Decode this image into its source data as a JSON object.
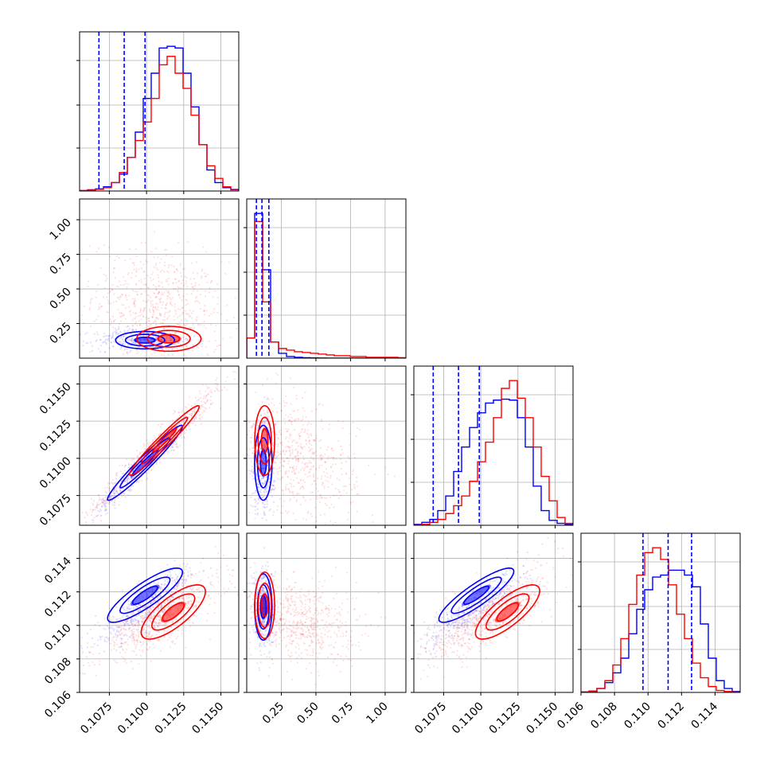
{
  "chart_data": {
    "type": "scatter",
    "title": "",
    "grid": true,
    "legend": "none",
    "series_colors": {
      "blue": "#0000ff",
      "red": "#ff0000"
    },
    "quantile_line_color": "#0000ff",
    "parameters": [
      {
        "range": [
          0.1055,
          0.1162
        ],
        "ticks": [
          0.1075,
          0.11,
          0.1125,
          0.115
        ],
        "tick_labels": [
          "0.1075",
          "0.1100",
          "0.1125",
          "0.1150"
        ]
      },
      {
        "range": [
          0.0,
          1.15
        ],
        "ticks": [
          0.25,
          0.5,
          0.75,
          1.0
        ],
        "tick_labels": [
          "0.25",
          "0.50",
          "0.75",
          "1.00"
        ]
      },
      {
        "range": [
          0.1055,
          0.1162
        ],
        "ticks": [
          0.1075,
          0.11,
          0.1125,
          0.115
        ],
        "tick_labels": [
          "0.1075",
          "0.1100",
          "0.1125",
          "0.1150"
        ]
      },
      {
        "range": [
          0.106,
          0.1155
        ],
        "ticks": [
          0.106,
          0.108,
          0.11,
          0.112,
          0.114
        ],
        "tick_labels": [
          "0.106",
          "0.108",
          "0.110",
          "0.112",
          "0.114"
        ]
      }
    ],
    "quantiles": [
      [
        0.1068,
        0.1085,
        0.1099
      ],
      [
        0.07,
        0.11,
        0.16
      ],
      [
        0.1068,
        0.1085,
        0.1099
      ],
      [
        0.1097,
        0.1112,
        0.1126
      ]
    ],
    "histograms": [
      {
        "blue": {
          "edges": [
            0.1055,
            0.1162
          ],
          "counts": [
            0.5,
            1.5,
            2.5,
            5,
            10,
            20,
            40,
            70,
            110,
            140,
            170,
            172,
            170,
            140,
            100,
            55,
            25,
            10,
            4,
            1.5
          ]
        },
        "red": {
          "edges": [
            0.1055,
            0.1162
          ],
          "counts": [
            0.5,
            1,
            2,
            4,
            10,
            22,
            40,
            60,
            82,
            110,
            150,
            160,
            140,
            122,
            90,
            55,
            30,
            15,
            5,
            2
          ]
        }
      },
      {
        "blue": {
          "edges": [
            0.0,
            1.15
          ],
          "counts": [
            25,
            180,
            110,
            20,
            6,
            2,
            1,
            0.5,
            0.3,
            0.2,
            0.1,
            0.1,
            0.1,
            0.1,
            0,
            0,
            0,
            0,
            0,
            0
          ]
        },
        "red": {
          "edges": [
            0.0,
            1.15
          ],
          "counts": [
            25,
            170,
            70,
            20,
            12,
            10,
            8,
            7,
            6,
            5,
            4,
            3,
            3,
            2,
            2,
            1,
            1,
            1,
            1,
            0.5
          ]
        }
      },
      {
        "blue": {
          "edges": [
            0.1055,
            0.1162
          ],
          "counts": [
            1,
            3,
            6,
            15,
            30,
            55,
            80,
            100,
            115,
            125,
            128,
            129,
            128,
            110,
            80,
            40,
            15,
            5,
            2,
            1
          ]
        },
        "red": {
          "edges": [
            0.1055,
            0.1162
          ],
          "counts": [
            0.5,
            1,
            3,
            6,
            12,
            20,
            30,
            45,
            65,
            85,
            110,
            140,
            148,
            130,
            110,
            80,
            50,
            25,
            8,
            2
          ]
        }
      },
      {
        "blue": {
          "edges": [
            0.106,
            0.1155
          ],
          "counts": [
            0.5,
            1,
            4,
            10,
            20,
            35,
            60,
            85,
            105,
            118,
            120,
            125,
            125,
            120,
            108,
            70,
            35,
            12,
            4,
            1
          ]
        },
        "red": {
          "edges": [
            0.106,
            0.1155
          ],
          "counts": [
            0.5,
            1.5,
            4,
            12,
            28,
            55,
            90,
            120,
            143,
            148,
            136,
            110,
            80,
            55,
            30,
            15,
            6,
            2,
            1,
            0.5
          ]
        }
      }
    ],
    "pairs": [
      {
        "col": 0,
        "row": 1,
        "blue": {
          "mean": [
            0.1099,
            0.13
          ],
          "sd": [
            0.0017,
            0.04
          ],
          "corr": 0.0
        },
        "red": {
          "mean": [
            0.1108,
            0.36
          ],
          "sd": [
            0.0022,
            0.22
          ],
          "corr": -0.2
        },
        "blue_core": {
          "mean": [
            0.1099,
            0.13
          ],
          "sd": [
            0.0011,
            0.035
          ],
          "corr": 0.0
        },
        "red_core": {
          "mean": [
            0.1115,
            0.14
          ],
          "sd": [
            0.0012,
            0.05
          ],
          "corr": 0.0
        }
      },
      {
        "col": 0,
        "row": 2,
        "blue": {
          "mean": [
            0.1099,
            0.1097
          ],
          "sd": [
            0.0017,
            0.0017
          ],
          "corr": 0.97
        },
        "red": {
          "mean": [
            0.1106,
            0.1106
          ],
          "sd": [
            0.0021,
            0.0021
          ],
          "corr": 0.97
        },
        "blue_core": {
          "mean": [
            0.1099,
            0.1097
          ],
          "sd": [
            0.0014,
            0.0014
          ],
          "corr": 0.97
        },
        "red_core": {
          "mean": [
            0.1112,
            0.1112
          ],
          "sd": [
            0.0013,
            0.0013
          ],
          "corr": 0.97
        }
      },
      {
        "col": 0,
        "row": 3,
        "blue": {
          "mean": [
            0.1099,
            0.1111
          ],
          "sd": [
            0.0017,
            0.0012
          ],
          "corr": 0.85
        },
        "red": {
          "mean": [
            0.1108,
            0.1105
          ],
          "sd": [
            0.0021,
            0.0013
          ],
          "corr": 0.75
        },
        "blue_core": {
          "mean": [
            0.1099,
            0.1118
          ],
          "sd": [
            0.0014,
            0.0009
          ],
          "corr": 0.85
        },
        "red_core": {
          "mean": [
            0.1118,
            0.1108
          ],
          "sd": [
            0.0012,
            0.0009
          ],
          "corr": 0.75
        }
      },
      {
        "col": 1,
        "row": 2,
        "blue": {
          "mean": [
            0.12,
            0.1097
          ],
          "sd": [
            0.04,
            0.0017
          ],
          "corr": 0.0
        },
        "red": {
          "mean": [
            0.35,
            0.1098
          ],
          "sd": [
            0.22,
            0.0021
          ],
          "corr": -0.25
        },
        "blue_core": {
          "mean": [
            0.12,
            0.1097
          ],
          "sd": [
            0.035,
            0.0014
          ],
          "corr": 0.0
        },
        "red_core": {
          "mean": [
            0.13,
            0.1112
          ],
          "sd": [
            0.04,
            0.0013
          ],
          "corr": 0.0
        }
      },
      {
        "col": 1,
        "row": 3,
        "blue": {
          "mean": [
            0.12,
            0.1111
          ],
          "sd": [
            0.04,
            0.0012
          ],
          "corr": 0.0
        },
        "red": {
          "mean": [
            0.35,
            0.1103
          ],
          "sd": [
            0.22,
            0.0013
          ],
          "corr": -0.2
        },
        "blue_core": {
          "mean": [
            0.12,
            0.1111
          ],
          "sd": [
            0.035,
            0.0011
          ],
          "corr": 0.0
        },
        "red_core": {
          "mean": [
            0.13,
            0.1112
          ],
          "sd": [
            0.04,
            0.0011
          ],
          "corr": 0.0
        }
      },
      {
        "col": 2,
        "row": 3,
        "blue": {
          "mean": [
            0.1097,
            0.1111
          ],
          "sd": [
            0.0017,
            0.0012
          ],
          "corr": 0.88
        },
        "red": {
          "mean": [
            0.1106,
            0.1105
          ],
          "sd": [
            0.0021,
            0.0013
          ],
          "corr": 0.78
        },
        "blue_core": {
          "mean": [
            0.1097,
            0.1118
          ],
          "sd": [
            0.0014,
            0.0009
          ],
          "corr": 0.88
        },
        "red_core": {
          "mean": [
            0.1118,
            0.1108
          ],
          "sd": [
            0.0012,
            0.0009
          ],
          "corr": 0.78
        }
      }
    ]
  }
}
